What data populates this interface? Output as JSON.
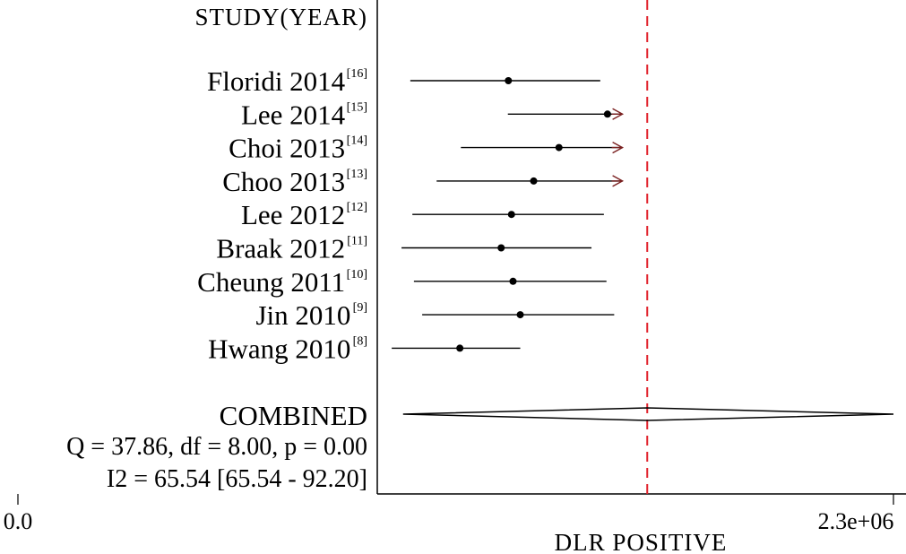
{
  "chart_data": {
    "type": "forest",
    "header": "STUDY(YEAR)",
    "x_axis": {
      "title": "DLR POSITIVE",
      "tick_labels": [
        "0.0",
        "2.3e+06"
      ]
    },
    "studies": [
      {
        "name": "Floridi 2014",
        "ref": "[16]",
        "estimate_frac": 0.254,
        "lower_frac": 0.064,
        "upper_frac": 0.432,
        "upper_truncated": false
      },
      {
        "name": "Lee 2014",
        "ref": "[15]",
        "estimate_frac": 0.446,
        "lower_frac": 0.253,
        "upper_frac": 0.475,
        "upper_truncated": true
      },
      {
        "name": "Choi 2013",
        "ref": "[14]",
        "estimate_frac": 0.352,
        "lower_frac": 0.162,
        "upper_frac": 0.475,
        "upper_truncated": true
      },
      {
        "name": "Choo 2013",
        "ref": "[13]",
        "estimate_frac": 0.303,
        "lower_frac": 0.115,
        "upper_frac": 0.475,
        "upper_truncated": true
      },
      {
        "name": "Lee 2012",
        "ref": "[12]",
        "estimate_frac": 0.26,
        "lower_frac": 0.068,
        "upper_frac": 0.439,
        "upper_truncated": false
      },
      {
        "name": "Braak 2012",
        "ref": "[11]",
        "estimate_frac": 0.24,
        "lower_frac": 0.047,
        "upper_frac": 0.415,
        "upper_truncated": false
      },
      {
        "name": "Cheung 2011",
        "ref": "[10]",
        "estimate_frac": 0.263,
        "lower_frac": 0.071,
        "upper_frac": 0.444,
        "upper_truncated": false
      },
      {
        "name": "Jin 2010",
        "ref": "[9]",
        "estimate_frac": 0.277,
        "lower_frac": 0.087,
        "upper_frac": 0.459,
        "upper_truncated": false
      },
      {
        "name": "Hwang 2010",
        "ref": "[8]",
        "estimate_frac": 0.16,
        "lower_frac": 0.028,
        "upper_frac": 0.277,
        "upper_truncated": false
      }
    ],
    "combined": {
      "label": "COMBINED",
      "estimate_frac": 0.523,
      "lower_frac": 0.05,
      "upper_frac": 1.0
    },
    "stats": {
      "line1": "Q = 37.86, df = 8.00, p =  0.00",
      "line2": "I2 = 65.54 [65.54 - 92.20]"
    },
    "colors": {
      "reference_line": "#e0202a",
      "arrow": "#7a2020",
      "marks": "#000000"
    }
  }
}
